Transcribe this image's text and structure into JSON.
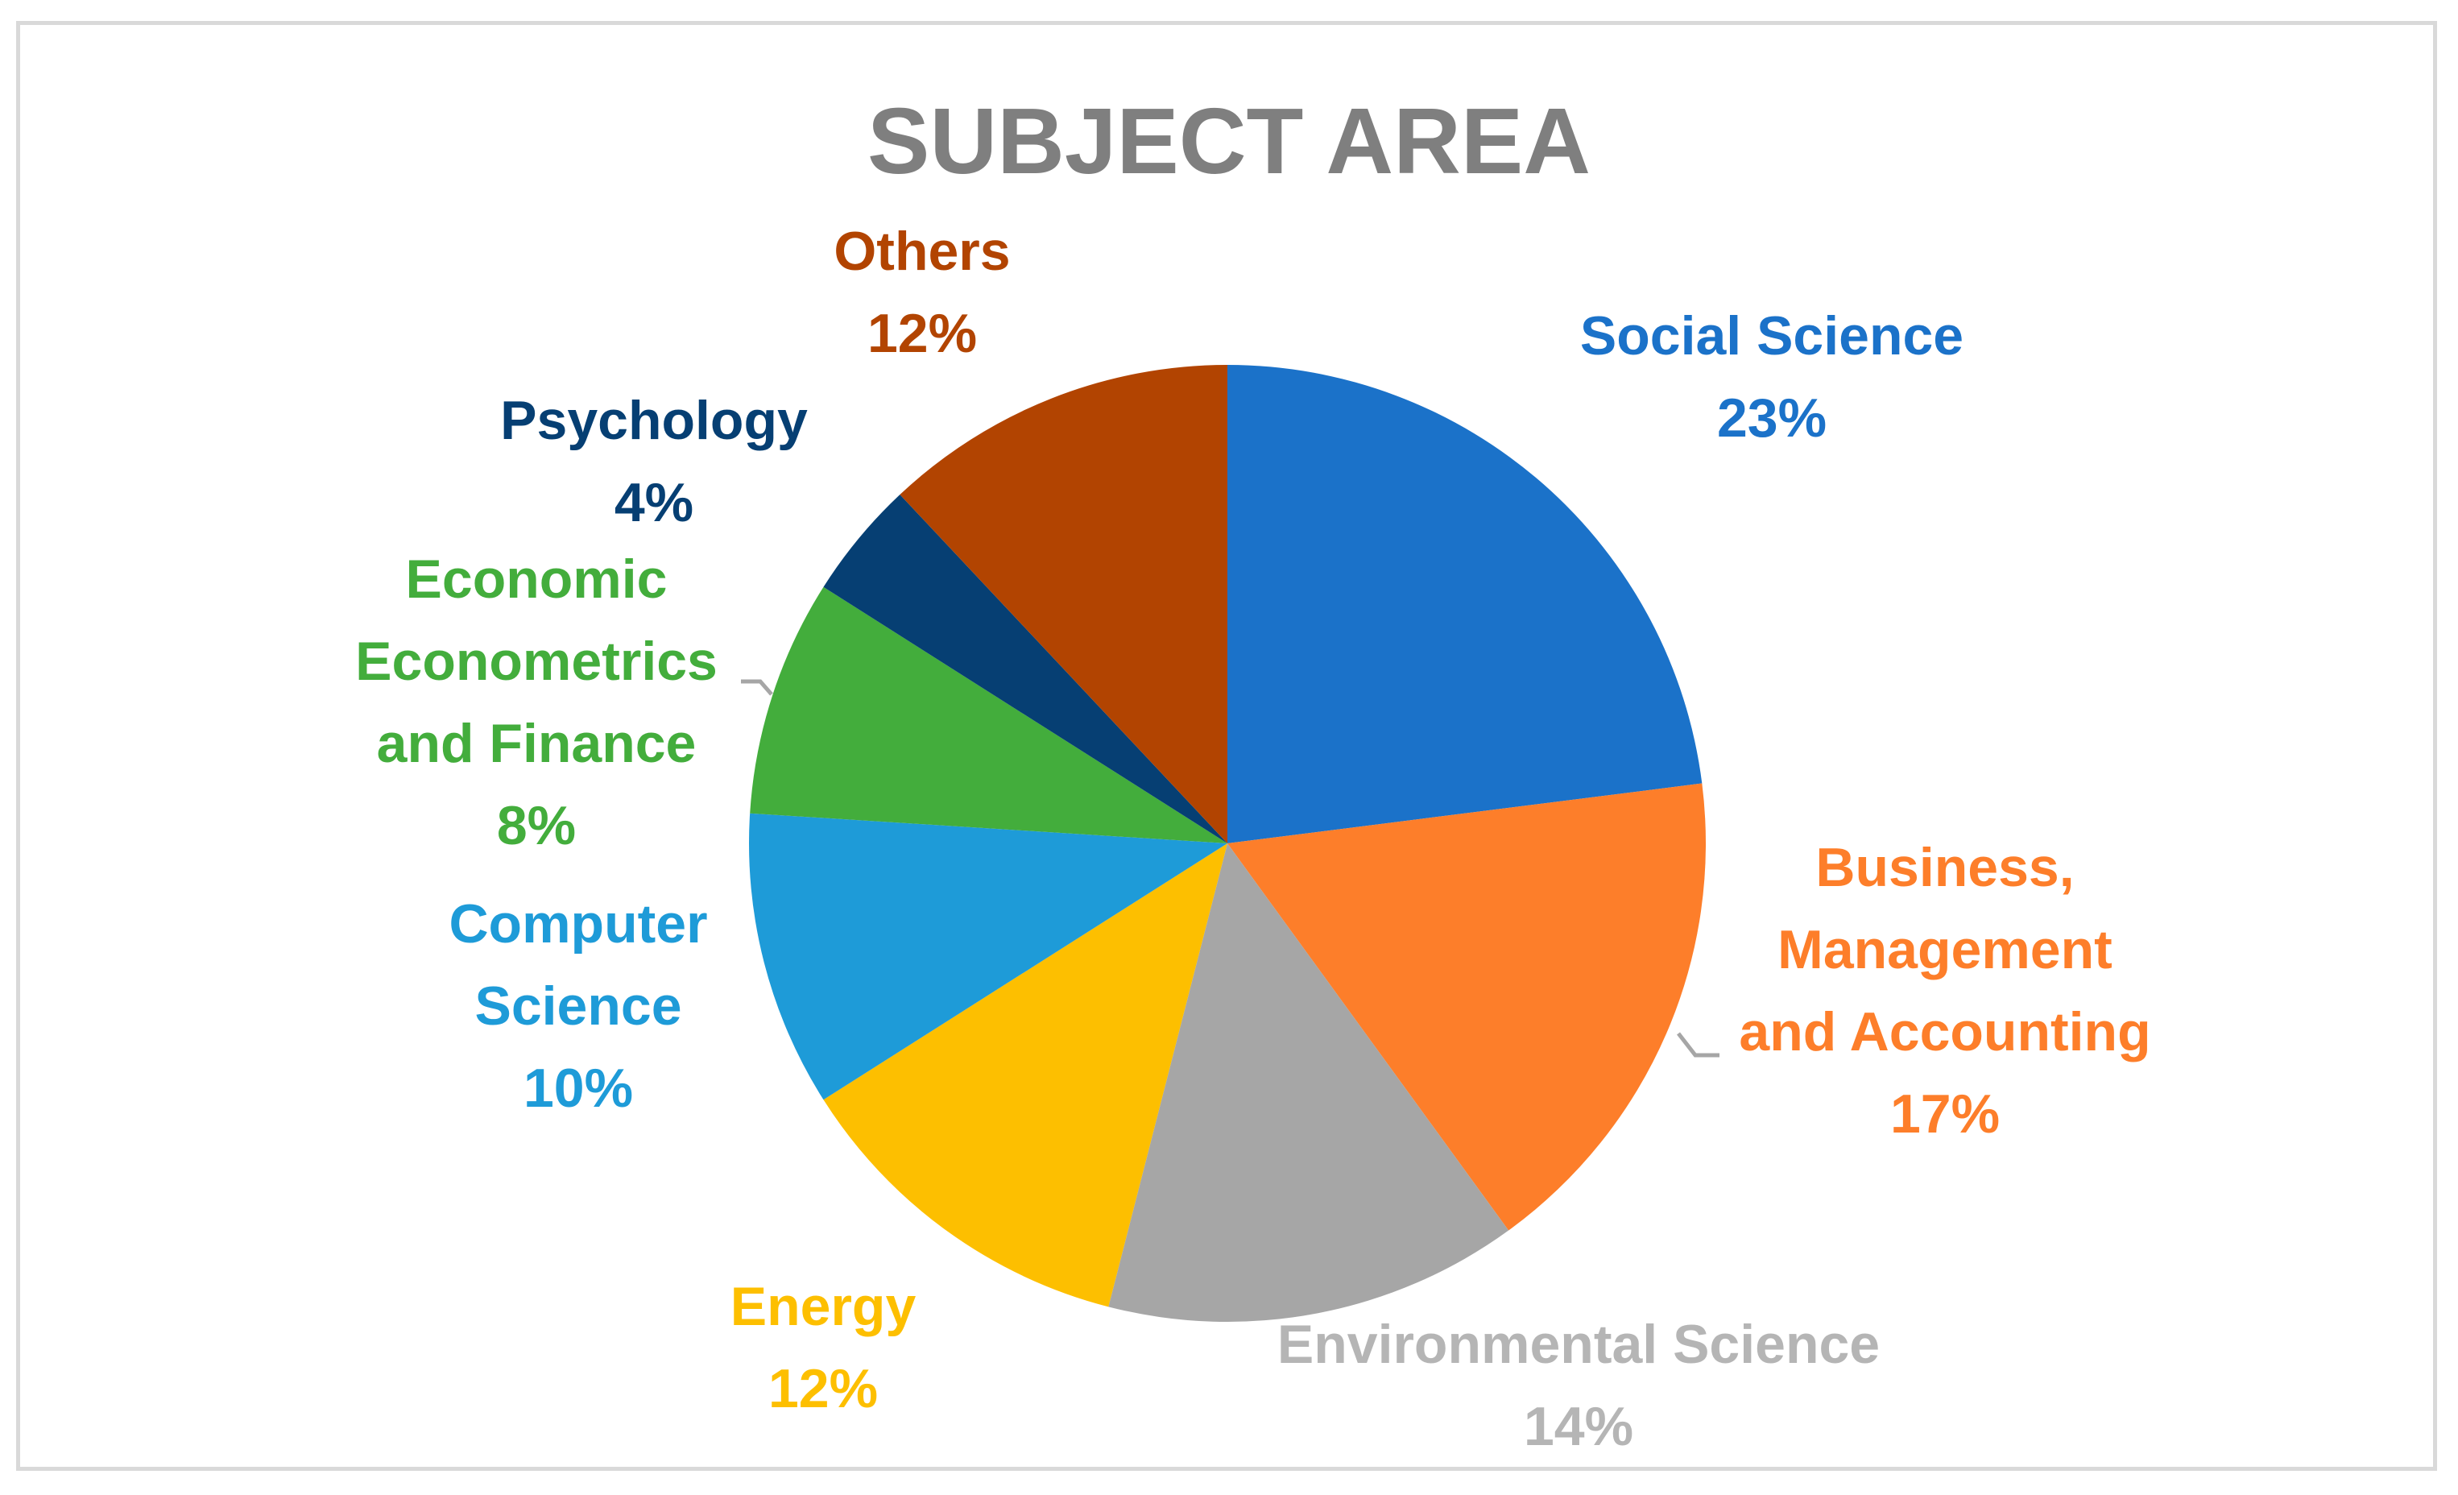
{
  "chart_data": {
    "type": "pie",
    "title": "SUBJECT AREA",
    "slices": [
      {
        "label_lines": [
          "Social Science"
        ],
        "value": 23,
        "value_label": "23%",
        "color": "#1b72c9"
      },
      {
        "label_lines": [
          "Business,",
          "Management",
          "and Accounting"
        ],
        "value": 17,
        "value_label": "17%",
        "color": "#fd7e2a"
      },
      {
        "label_lines": [
          "Environmental Science"
        ],
        "value": 14,
        "value_label": "14%",
        "color": "#a6a6a6"
      },
      {
        "label_lines": [
          "Energy"
        ],
        "value": 12,
        "value_label": "12%",
        "color": "#fdbf00"
      },
      {
        "label_lines": [
          "Computer",
          "Science"
        ],
        "value": 10,
        "value_label": "10%",
        "color": "#1e9bd8"
      },
      {
        "label_lines": [
          "Economic",
          "Econometrics",
          "and Finance"
        ],
        "value": 8,
        "value_label": "8%",
        "color": "#43ad3c"
      },
      {
        "label_lines": [
          "Psychology"
        ],
        "value": 4,
        "value_label": "4%",
        "color": "#063f73"
      },
      {
        "label_lines": [
          "Others"
        ],
        "value": 12,
        "value_label": "12%",
        "color": "#b24401"
      }
    ],
    "label_text_colors": [
      "#1b72c9",
      "#fd7e2a",
      "#b5b5b5",
      "#fdbf00",
      "#1e9bd8",
      "#43ad3c",
      "#063f73",
      "#b24401"
    ],
    "leader_line_color": "#a6a6a6",
    "legend": "none"
  }
}
